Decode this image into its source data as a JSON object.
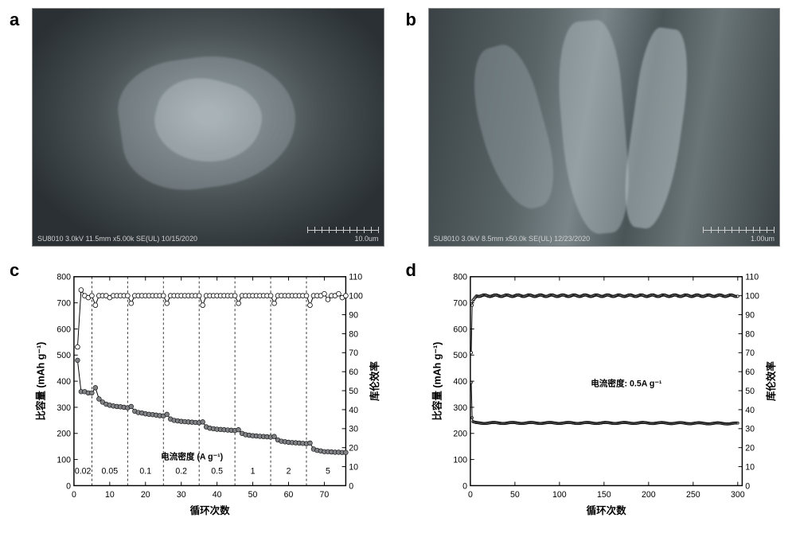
{
  "panels": {
    "a": {
      "label": "a",
      "caption_left": "SU8010 3.0kV 11.5mm x5.00k SE(UL) 10/15/2020",
      "scale_text": "10.0um"
    },
    "b": {
      "label": "b",
      "caption_left": "SU8010 3.0kV 8.5mm x50.0k SE(UL) 12/23/2020",
      "scale_text": "1.00um"
    },
    "c": {
      "label": "c",
      "title_left": "比容量 (mAh g⁻¹)",
      "title_right": "库伦效率",
      "title_bottom": "循环次数",
      "annotation": "电流密度 (A g⁻¹)",
      "xlim": [
        0,
        76
      ],
      "ylim_left": [
        0,
        800
      ],
      "ylim_right": [
        0,
        110
      ],
      "ytick_left": [
        0,
        100,
        200,
        300,
        400,
        500,
        600,
        700,
        800
      ],
      "ytick_right": [
        0,
        10,
        20,
        30,
        40,
        50,
        60,
        70,
        80,
        90,
        100,
        110
      ],
      "xtick": [
        0,
        10,
        20,
        30,
        40,
        50,
        60,
        70
      ],
      "rate_boundaries": [
        5,
        15,
        25,
        35,
        45,
        55,
        65
      ],
      "rate_labels": [
        {
          "x": 2.5,
          "text": "0.02"
        },
        {
          "x": 10,
          "text": "0.05"
        },
        {
          "x": 20,
          "text": "0.1"
        },
        {
          "x": 30,
          "text": "0.2"
        },
        {
          "x": 40,
          "text": "0.5"
        },
        {
          "x": 50,
          "text": "1"
        },
        {
          "x": 60,
          "text": "2"
        },
        {
          "x": 71,
          "text": "5"
        }
      ],
      "capacity": [
        480,
        360,
        360,
        355,
        355,
        375,
        332,
        320,
        312,
        308,
        305,
        303,
        302,
        300,
        298,
        303,
        285,
        280,
        278,
        275,
        273,
        272,
        270,
        268,
        267,
        273,
        255,
        250,
        248,
        246,
        245,
        244,
        243,
        242,
        241,
        244,
        225,
        220,
        218,
        216,
        215,
        214,
        213,
        212,
        211,
        214,
        200,
        195,
        193,
        191,
        190,
        189,
        188,
        187,
        186,
        188,
        175,
        170,
        168,
        166,
        165,
        164,
        163,
        162,
        161,
        163,
        140,
        135,
        133,
        130,
        130,
        129,
        128,
        128,
        127,
        127
      ],
      "efficiency": [
        73,
        103,
        100,
        99,
        100,
        95,
        100,
        100,
        100,
        99,
        100,
        100,
        100,
        100,
        100,
        96,
        100,
        100,
        100,
        100,
        100,
        100,
        100,
        100,
        100,
        96,
        100,
        100,
        100,
        100,
        100,
        100,
        100,
        100,
        100,
        95,
        100,
        100,
        100,
        100,
        100,
        100,
        100,
        100,
        100,
        96,
        100,
        100,
        100,
        100,
        100,
        100,
        100,
        100,
        100,
        96,
        100,
        100,
        100,
        100,
        100,
        100,
        100,
        100,
        100,
        95,
        100,
        100,
        100,
        101,
        98,
        100,
        100,
        101,
        99,
        100
      ],
      "colors": {
        "capacity_fill": "#808285",
        "eff_fill": "#ffffff",
        "stroke": "#000000",
        "bg": "#ffffff"
      }
    },
    "d": {
      "label": "d",
      "title_left": "比容量 (mAh g⁻¹)",
      "title_right": "库伦效率",
      "title_bottom": "循环次数",
      "annotation": "电流密度: 0.5A g⁻¹",
      "xlim": [
        0,
        305
      ],
      "ylim_left": [
        0,
        800
      ],
      "ylim_right": [
        0,
        110
      ],
      "ytick_left": [
        0,
        100,
        200,
        300,
        400,
        500,
        600,
        700,
        800
      ],
      "ytick_right": [
        0,
        10,
        20,
        30,
        40,
        50,
        60,
        70,
        80,
        90,
        100,
        110
      ],
      "xtick": [
        0,
        50,
        100,
        150,
        200,
        250,
        300
      ],
      "capacity_start": 395,
      "capacity_plateau": 240,
      "efficiency_start": 70,
      "efficiency_plateau": 100,
      "n_points": 300,
      "colors": {
        "capacity_fill": "#808285",
        "eff_fill": "#ffffff",
        "stroke": "#000000",
        "bg": "#ffffff"
      }
    }
  }
}
